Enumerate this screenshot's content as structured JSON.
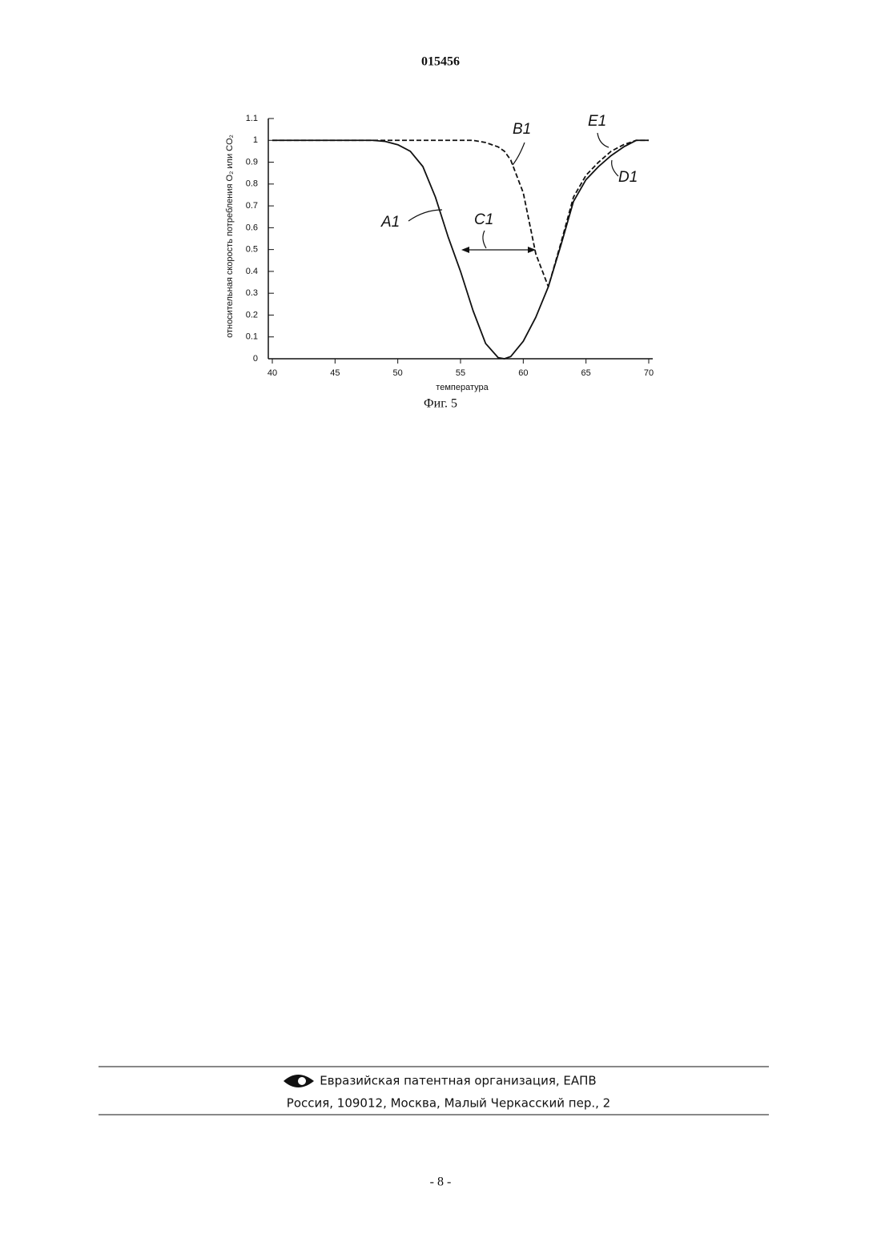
{
  "header": {
    "title": "015456"
  },
  "chart_data": {
    "type": "line",
    "ylabel": "относительная скорость потребления O₂ или CO₂",
    "xlabel": "температура",
    "x": [
      40,
      45,
      48,
      49,
      50,
      51,
      52,
      53,
      54,
      55,
      56,
      57,
      58,
      58.5,
      59,
      60,
      61,
      62,
      63,
      64,
      65,
      66,
      67,
      68,
      69,
      70
    ],
    "series": [
      {
        "name": "A1",
        "color": "#111111",
        "dash": false,
        "values": [
          1,
          1,
          1,
          0.995,
          0.98,
          0.95,
          0.88,
          0.74,
          0.56,
          0.4,
          0.22,
          0.07,
          0.005,
          0,
          0.01,
          0.08,
          0.19,
          0.33,
          0.52,
          0.72,
          0.82,
          0.88,
          0.93,
          0.97,
          1,
          1
        ]
      },
      {
        "name": "B1",
        "color": "#111111",
        "dash": true,
        "values": [
          1,
          1,
          1,
          1,
          1,
          1,
          1,
          1,
          1,
          1,
          1,
          0.99,
          0.97,
          0.95,
          0.91,
          0.76,
          0.48,
          0.33,
          0.53,
          0.74,
          0.84,
          0.9,
          0.95,
          0.98,
          1,
          1
        ]
      }
    ],
    "annotations": [
      "A1",
      "B1",
      "C1",
      "D1",
      "E1"
    ],
    "xlim": [
      40,
      70
    ],
    "xticks": [
      40,
      45,
      50,
      55,
      60,
      65,
      70
    ],
    "ylim": [
      0,
      1.1
    ],
    "yticks": [
      0,
      0.1,
      0.2,
      0.3,
      0.4,
      0.5,
      0.6,
      0.7,
      0.8,
      0.9,
      1,
      1.1
    ],
    "grid": false
  },
  "caption": "Фиг. 5",
  "footer": {
    "organization": "Евразийская патентная организация, ЕАПВ",
    "address": "Россия, 109012, Москва, Малый Черкасский пер., 2"
  },
  "page_number": "- 8 -"
}
